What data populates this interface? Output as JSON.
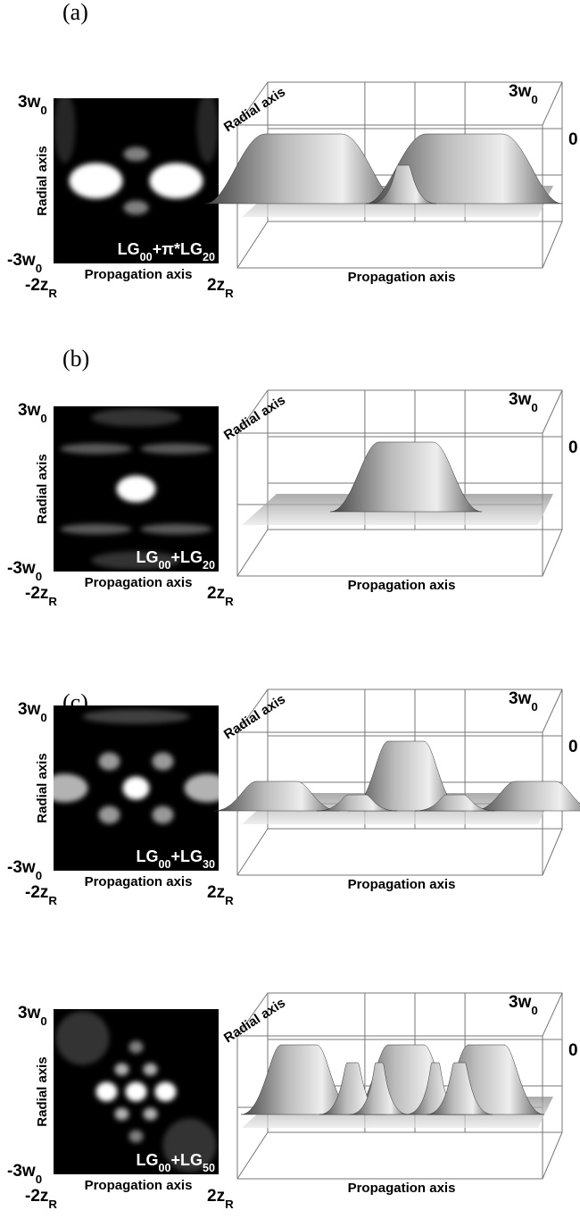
{
  "panels": [
    {
      "label": "(a)",
      "image": {
        "y_max": [
          {
            "text": "3w"
          },
          {
            "text": "0",
            "sub": true
          }
        ],
        "y_min": [
          {
            "text": "-3w"
          },
          {
            "text": "0",
            "sub": true
          }
        ],
        "x_min": [
          {
            "text": "-2z"
          },
          {
            "text": "R",
            "sub": true
          }
        ],
        "x_max": [
          {
            "text": "2z"
          },
          {
            "text": "R",
            "sub": true
          }
        ],
        "y_axis": "Radial axis",
        "x_axis": "Propagation axis",
        "mode": [
          {
            "text": "LG"
          },
          {
            "text": "00",
            "sub": true
          },
          {
            "text": "+π*LG"
          },
          {
            "text": "20",
            "sub": true
          }
        ]
      },
      "surface": {
        "radial_axis": "Radial axis",
        "radial_max": [
          {
            "text": "3w"
          },
          {
            "text": "0",
            "sub": true
          }
        ],
        "value": "0",
        "propagation_axis": "Propagation axis"
      }
    },
    {
      "label": "(b)",
      "image": {
        "y_max": [
          {
            "text": "3w"
          },
          {
            "text": "0",
            "sub": true
          }
        ],
        "y_min": [
          {
            "text": "-3w"
          },
          {
            "text": "0",
            "sub": true
          }
        ],
        "x_min": [
          {
            "text": "-2z"
          },
          {
            "text": "R",
            "sub": true
          }
        ],
        "x_max": [
          {
            "text": "2z"
          },
          {
            "text": "R",
            "sub": true
          }
        ],
        "y_axis": "Radial axis",
        "x_axis": "Propagation axis",
        "mode": [
          {
            "text": "LG"
          },
          {
            "text": "00",
            "sub": true
          },
          {
            "text": "+LG"
          },
          {
            "text": "20",
            "sub": true
          }
        ]
      },
      "surface": {
        "radial_axis": "Radial axis",
        "radial_max": [
          {
            "text": "3w"
          },
          {
            "text": "0",
            "sub": true
          }
        ],
        "value": "0",
        "propagation_axis": "Propagation axis"
      }
    },
    {
      "label": "(c)",
      "image": {
        "y_max": [
          {
            "text": "3w"
          },
          {
            "text": "0",
            "sub": true
          }
        ],
        "y_min": [
          {
            "text": "-3w"
          },
          {
            "text": "0",
            "sub": true
          }
        ],
        "x_min": [
          {
            "text": "-2z"
          },
          {
            "text": "R",
            "sub": true
          }
        ],
        "x_max": [
          {
            "text": "2z"
          },
          {
            "text": "R",
            "sub": true
          }
        ],
        "y_axis": "Radial axis",
        "x_axis": "Propagation axis",
        "mode": [
          {
            "text": "LG"
          },
          {
            "text": "00",
            "sub": true
          },
          {
            "text": "+LG"
          },
          {
            "text": "30",
            "sub": true
          }
        ]
      },
      "surface": {
        "radial_axis": "Radial axis",
        "radial_max": [
          {
            "text": "3w"
          },
          {
            "text": "0",
            "sub": true
          }
        ],
        "value": "0",
        "propagation_axis": "Propagation axis"
      }
    },
    {
      "image": {
        "y_max": [
          {
            "text": "3w"
          },
          {
            "text": "0",
            "sub": true
          }
        ],
        "y_min": [
          {
            "text": "-3w"
          },
          {
            "text": "0",
            "sub": true
          }
        ],
        "x_min": [
          {
            "text": "-2z"
          },
          {
            "text": "R",
            "sub": true
          }
        ],
        "x_max": [
          {
            "text": "2z"
          },
          {
            "text": "R",
            "sub": true
          }
        ],
        "y_axis": "Radial axis",
        "x_axis": "Propagation axis",
        "mode": [
          {
            "text": "LG"
          },
          {
            "text": "00",
            "sub": true
          },
          {
            "text": "+LG"
          },
          {
            "text": "50",
            "sub": true
          }
        ]
      },
      "surface": {
        "radial_axis": "Radial axis",
        "radial_max": [
          {
            "text": "3w"
          },
          {
            "text": "0",
            "sub": true
          }
        ],
        "value": "0",
        "propagation_axis": "Propagation axis"
      }
    }
  ]
}
